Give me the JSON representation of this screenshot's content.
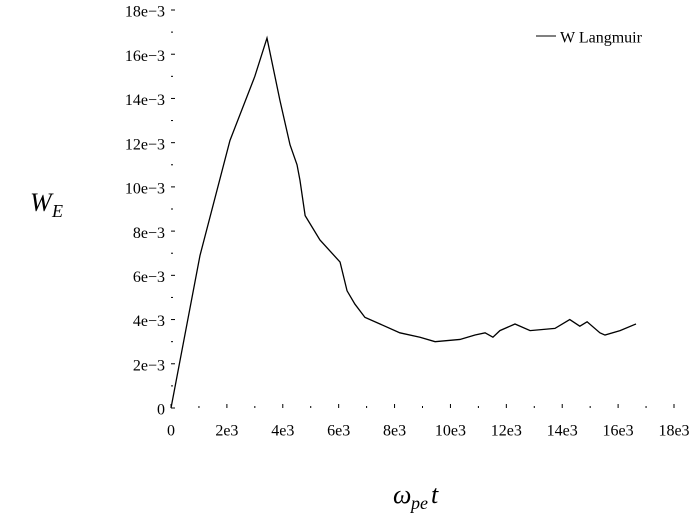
{
  "chart_data": {
    "type": "line",
    "xlabel": "ω",
    "xlabel_sub": "pe",
    "xlabel_tail": "t",
    "ylabel": "W",
    "ylabel_sub": "E",
    "xlim": [
      0,
      18000
    ],
    "xticks": [
      0,
      {
        "value": 2000,
        "label": "2e3"
      },
      {
        "value": 4000,
        "label": "4e3"
      },
      {
        "value": 6000,
        "label": "6e3"
      },
      {
        "value": 8000,
        "label": "8e3"
      },
      {
        "value": 10000,
        "label": "10e3"
      },
      {
        "value": 12000,
        "label": "12e3"
      },
      {
        "value": 14000,
        "label": "14e3"
      },
      {
        "value": 16000,
        "label": "16e3"
      },
      {
        "value": 18000,
        "label": "18e3"
      }
    ],
    "xminorticks": [
      1000,
      3000,
      5000,
      7000,
      9000,
      11000,
      13000,
      15000,
      17000
    ],
    "ylim": [
      0,
      0.018
    ],
    "yticks": [
      0,
      {
        "value": 0.002,
        "label": "2e−3"
      },
      {
        "value": 0.004,
        "label": "4e−3"
      },
      {
        "value": 0.006,
        "label": "6e−3"
      },
      {
        "value": 0.008,
        "label": "8e−3"
      },
      {
        "value": 0.01,
        "label": "10e−3"
      },
      {
        "value": 0.012,
        "label": "12e−3"
      },
      {
        "value": 0.014,
        "label": "14e−3"
      },
      {
        "value": 0.016,
        "label": "16e−3"
      },
      {
        "value": 0.018,
        "label": "18e−3"
      }
    ],
    "yminorticks": [
      0.001,
      0.003,
      0.005,
      0.007,
      0.009,
      0.011,
      0.013,
      0.015,
      0.017
    ],
    "legend": "top-right",
    "series": [
      {
        "name": "W Langmuir",
        "color": "#000000",
        "x": [
          0,
          1038,
          2110,
          3000,
          3435,
          3900,
          4260,
          4510,
          4615,
          4800,
          5330,
          6050,
          6300,
          6580,
          6940,
          7480,
          8190,
          8910,
          9450,
          10340,
          10880,
          11240,
          11520,
          11770,
          12310,
          12850,
          13740,
          14270,
          14630,
          14890,
          15350,
          15530,
          16070,
          16640
        ],
        "values": [
          0,
          0.0069,
          0.0121,
          0.015,
          0.01673,
          0.0139,
          0.0119,
          0.011,
          0.0103,
          0.0087,
          0.0076,
          0.0066,
          0.0053,
          0.0047,
          0.0041,
          0.0038,
          0.0034,
          0.0032,
          0.003,
          0.0031,
          0.0033,
          0.0034,
          0.0032,
          0.0035,
          0.0038,
          0.0035,
          0.0036,
          0.004,
          0.0037,
          0.0039,
          0.0034,
          0.0033,
          0.0035,
          0.0038
        ]
      }
    ]
  }
}
